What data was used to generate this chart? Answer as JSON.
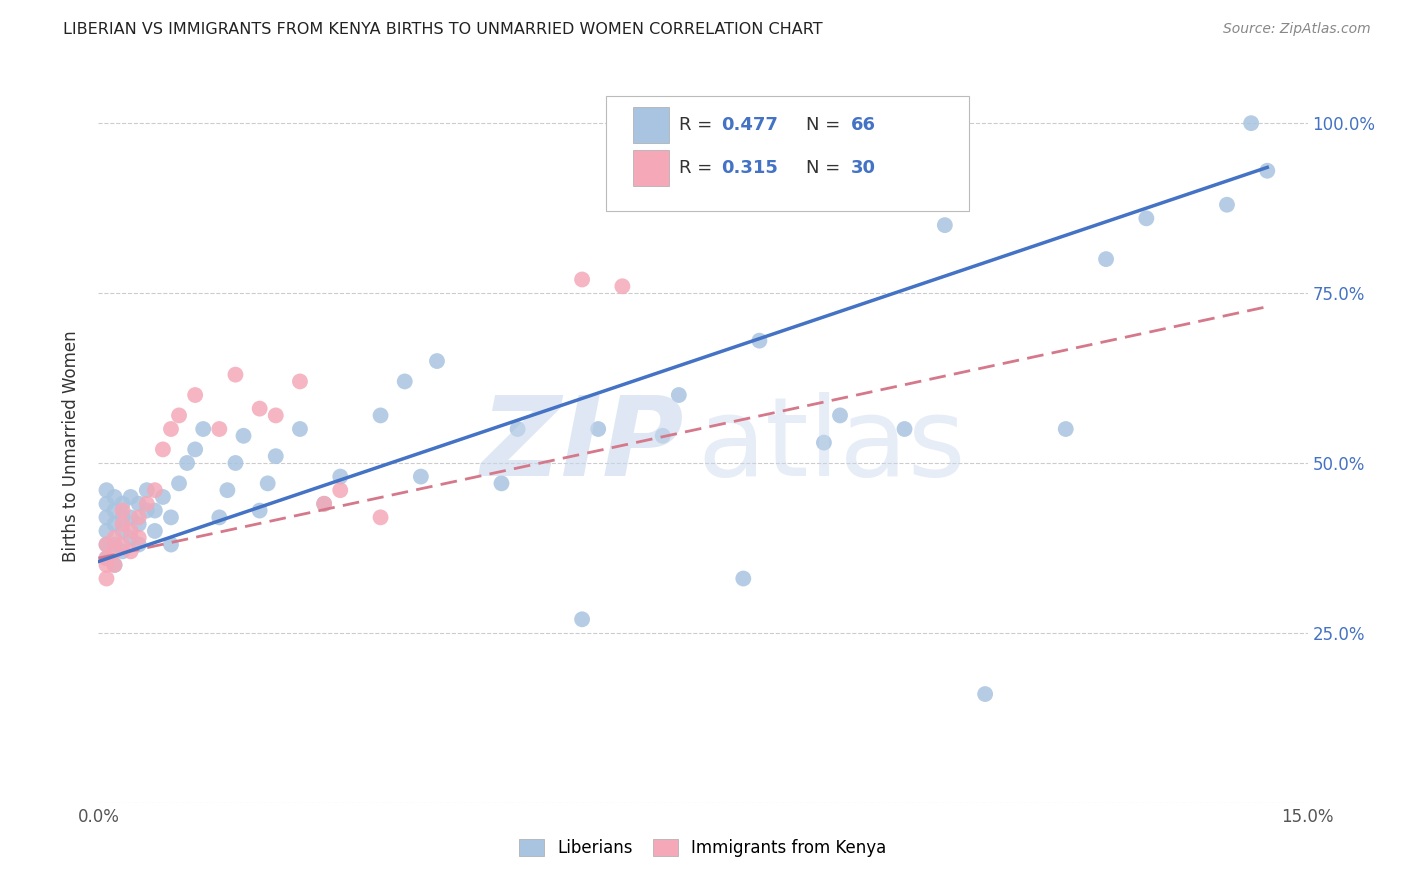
{
  "title": "LIBERIAN VS IMMIGRANTS FROM KENYA BIRTHS TO UNMARRIED WOMEN CORRELATION CHART",
  "source": "Source: ZipAtlas.com",
  "ylabel": "Births to Unmarried Women",
  "xlim": [
    0.0,
    0.15
  ],
  "ylim": [
    0.0,
    1.05
  ],
  "ytick_values": [
    0.0,
    0.25,
    0.5,
    0.75,
    1.0
  ],
  "right_ytick_labels": [
    "",
    "25.0%",
    "50.0%",
    "75.0%",
    "100.0%"
  ],
  "color_liberian": "#a8c4e0",
  "color_kenya": "#f4a8b8",
  "color_line_liberian": "#4472c4",
  "color_line_kenya": "#d4788a",
  "legend_box_color": "#e8f0f8",
  "liberian_x": [
    0.001,
    0.001,
    0.001,
    0.001,
    0.001,
    0.001,
    0.002,
    0.002,
    0.002,
    0.002,
    0.002,
    0.003,
    0.003,
    0.003,
    0.003,
    0.004,
    0.004,
    0.004,
    0.005,
    0.005,
    0.005,
    0.006,
    0.006,
    0.007,
    0.007,
    0.008,
    0.009,
    0.009,
    0.01,
    0.011,
    0.012,
    0.013,
    0.015,
    0.016,
    0.017,
    0.018,
    0.02,
    0.021,
    0.022,
    0.025,
    0.028,
    0.03,
    0.035,
    0.038,
    0.04,
    0.042,
    0.05,
    0.052,
    0.06,
    0.062,
    0.07,
    0.072,
    0.08,
    0.082,
    0.09,
    0.092,
    0.1,
    0.105,
    0.11,
    0.12,
    0.125,
    0.13,
    0.14,
    0.143,
    0.145
  ],
  "liberian_y": [
    0.38,
    0.4,
    0.42,
    0.44,
    0.46,
    0.36,
    0.35,
    0.38,
    0.41,
    0.43,
    0.45,
    0.37,
    0.4,
    0.42,
    0.44,
    0.39,
    0.42,
    0.45,
    0.38,
    0.41,
    0.44,
    0.43,
    0.46,
    0.4,
    0.43,
    0.45,
    0.38,
    0.42,
    0.47,
    0.5,
    0.52,
    0.55,
    0.42,
    0.46,
    0.5,
    0.54,
    0.43,
    0.47,
    0.51,
    0.55,
    0.44,
    0.48,
    0.57,
    0.62,
    0.48,
    0.65,
    0.47,
    0.55,
    0.27,
    0.55,
    0.54,
    0.6,
    0.33,
    0.68,
    0.53,
    0.57,
    0.55,
    0.85,
    0.16,
    0.55,
    0.8,
    0.86,
    0.88,
    1.0,
    0.93
  ],
  "kenya_x": [
    0.001,
    0.001,
    0.001,
    0.001,
    0.002,
    0.002,
    0.002,
    0.003,
    0.003,
    0.003,
    0.004,
    0.004,
    0.005,
    0.005,
    0.006,
    0.007,
    0.008,
    0.009,
    0.01,
    0.012,
    0.015,
    0.017,
    0.02,
    0.022,
    0.025,
    0.028,
    0.03,
    0.035,
    0.06,
    0.065
  ],
  "kenya_y": [
    0.33,
    0.36,
    0.38,
    0.35,
    0.35,
    0.37,
    0.39,
    0.38,
    0.41,
    0.43,
    0.37,
    0.4,
    0.39,
    0.42,
    0.44,
    0.46,
    0.52,
    0.55,
    0.57,
    0.6,
    0.55,
    0.63,
    0.58,
    0.57,
    0.62,
    0.44,
    0.46,
    0.42,
    0.77,
    0.76
  ],
  "line_lib_x0": 0.0,
  "line_lib_y0": 0.355,
  "line_lib_x1": 0.145,
  "line_lib_y1": 0.935,
  "line_ken_x0": 0.0,
  "line_ken_y0": 0.36,
  "line_ken_x1": 0.145,
  "line_ken_y1": 0.73
}
